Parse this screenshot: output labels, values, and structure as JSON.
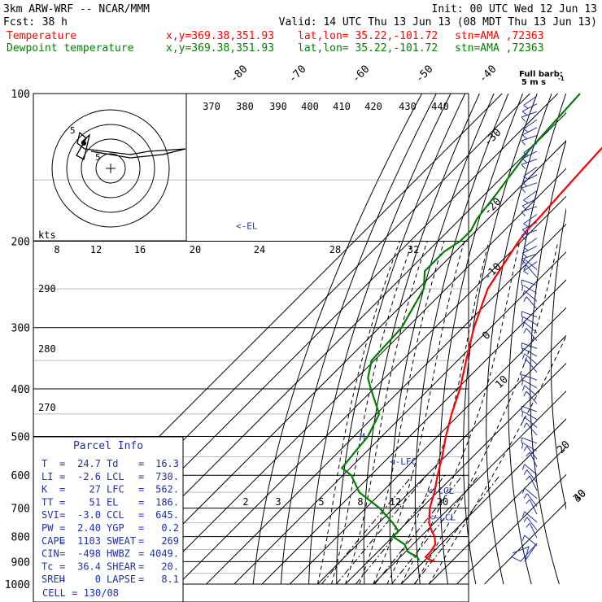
{
  "header": {
    "model": "3km ARW-WRF -- NCAR/MMM",
    "init": "Init: 00 UTC Wed 12 Jun 13",
    "fcst_label": "Fcst:",
    "fcst_value": "38 h",
    "valid": "Valid: 14 UTC Thu 13 Jun 13 (08 MDT Thu 13 Jun 13)",
    "temp_line": {
      "label": "Temperature",
      "xy": "x,y=369.38,351.93",
      "latlon": "lat,lon= 35.22,-101.72",
      "stn": "stn=AMA ,72363"
    },
    "dew_line": {
      "label": "Dewpoint temperature",
      "xy": "x,y=369.38,351.93",
      "latlon": "lat,lon= 35.22,-101.72",
      "stn": "stn=AMA ,72363"
    }
  },
  "colors": {
    "temperature": "#ff0000",
    "dewpoint": "#008000",
    "wind": "#1f2fb0",
    "line": "#000000"
  },
  "chart_data": {
    "type": "line",
    "pressure_levels": [
      "100",
      "200",
      "300",
      "400",
      "500",
      "600",
      "700",
      "800",
      "900",
      "1000"
    ],
    "isotherm_labels_top": [
      "-80",
      "-70",
      "-60",
      "-50",
      "-40"
    ],
    "isotherm_labels_right": [
      "-30",
      "-20",
      "-10",
      "0",
      "10",
      "20",
      "30",
      "40"
    ],
    "theta_labels_top": [
      "370",
      "380",
      "390",
      "400",
      "410",
      "420",
      "430",
      "440"
    ],
    "theta_labels_left": [
      "290",
      "280",
      "270"
    ],
    "mixing_ratio_labels": [
      "2",
      "3",
      "5",
      "8",
      "12",
      "20"
    ],
    "hodograph": {
      "units_label": "kts",
      "speed_labels": [
        "8",
        "12",
        "16",
        "20",
        "24",
        "28",
        "32"
      ],
      "ring_labels": [
        "5",
        "5"
      ]
    },
    "level_markers": [
      {
        "label": "<-EL",
        "p": 186
      },
      {
        "label": "<-LFC",
        "p": 562
      },
      {
        "label": "<-CCL",
        "p": 645
      },
      {
        "label": "<-LCL",
        "p": 730
      },
      {
        "label": "M",
        "p": 500
      }
    ],
    "wind_legend": {
      "title": "Full barb:",
      "subtitle": "5 m s",
      "exp": "-1"
    },
    "series": [
      {
        "name": "Temperature",
        "color": "#ff0000",
        "points": [
          [
            100,
            -69
          ],
          [
            120,
            -65
          ],
          [
            140,
            -64
          ],
          [
            160,
            -63
          ],
          [
            180,
            -62
          ],
          [
            190,
            -62
          ],
          [
            200,
            -61
          ],
          [
            250,
            -55
          ],
          [
            300,
            -46
          ],
          [
            350,
            -37
          ],
          [
            400,
            -29
          ],
          [
            450,
            -23
          ],
          [
            500,
            -17
          ],
          [
            550,
            -11
          ],
          [
            600,
            -6
          ],
          [
            650,
            -1
          ],
          [
            700,
            3
          ],
          [
            750,
            8
          ],
          [
            780,
            12
          ],
          [
            800,
            15
          ],
          [
            830,
            18
          ],
          [
            860,
            19
          ],
          [
            880,
            19
          ],
          [
            890,
            21
          ],
          [
            900,
            24
          ]
        ]
      },
      {
        "name": "Dewpoint temperature",
        "color": "#008000",
        "points": [
          [
            100,
            -92
          ],
          [
            130,
            -90
          ],
          [
            160,
            -86
          ],
          [
            180,
            -84
          ],
          [
            190,
            -82
          ],
          [
            200,
            -82
          ],
          [
            210,
            -84
          ],
          [
            230,
            -84
          ],
          [
            250,
            -78
          ],
          [
            300,
            -72
          ],
          [
            350,
            -71
          ],
          [
            380,
            -66
          ],
          [
            400,
            -61
          ],
          [
            450,
            -49
          ],
          [
            500,
            -45
          ],
          [
            540,
            -44
          ],
          [
            580,
            -43
          ],
          [
            600,
            -37
          ],
          [
            650,
            -28
          ],
          [
            700,
            -15
          ],
          [
            750,
            -5
          ],
          [
            780,
            0
          ],
          [
            800,
            0
          ],
          [
            830,
            7
          ],
          [
            860,
            11
          ],
          [
            880,
            16
          ],
          [
            895,
            18
          ]
        ]
      }
    ],
    "parcel_info": {
      "title": "Parcel Info",
      "rows": [
        [
          "T",
          "=",
          "24.7",
          "Td",
          "=",
          "16.3"
        ],
        [
          "LI",
          "=",
          "-2.6",
          "LCL",
          "=",
          "730."
        ],
        [
          "K",
          "=",
          "27",
          "LFC",
          "=",
          "562."
        ],
        [
          "TT",
          "=",
          "51",
          "EL",
          "=",
          "186."
        ],
        [
          "SVI",
          "=",
          "-3.0",
          "CCL",
          "=",
          "645."
        ],
        [
          "PW",
          "=",
          "2.40",
          "YGP",
          "=",
          "0.2"
        ],
        [
          "CAPE",
          "=",
          "1103",
          "SWEAT",
          "=",
          "269"
        ],
        [
          "CIN",
          "=",
          "-498",
          "HWBZ",
          "=",
          "4049."
        ],
        [
          "Tc",
          "=",
          "36.4",
          "SHEAR",
          "=",
          "20."
        ],
        [
          "SREH",
          "=",
          "0",
          "LAPSE",
          "=",
          "8.1"
        ]
      ],
      "cell": "CELL = 130/08"
    }
  }
}
